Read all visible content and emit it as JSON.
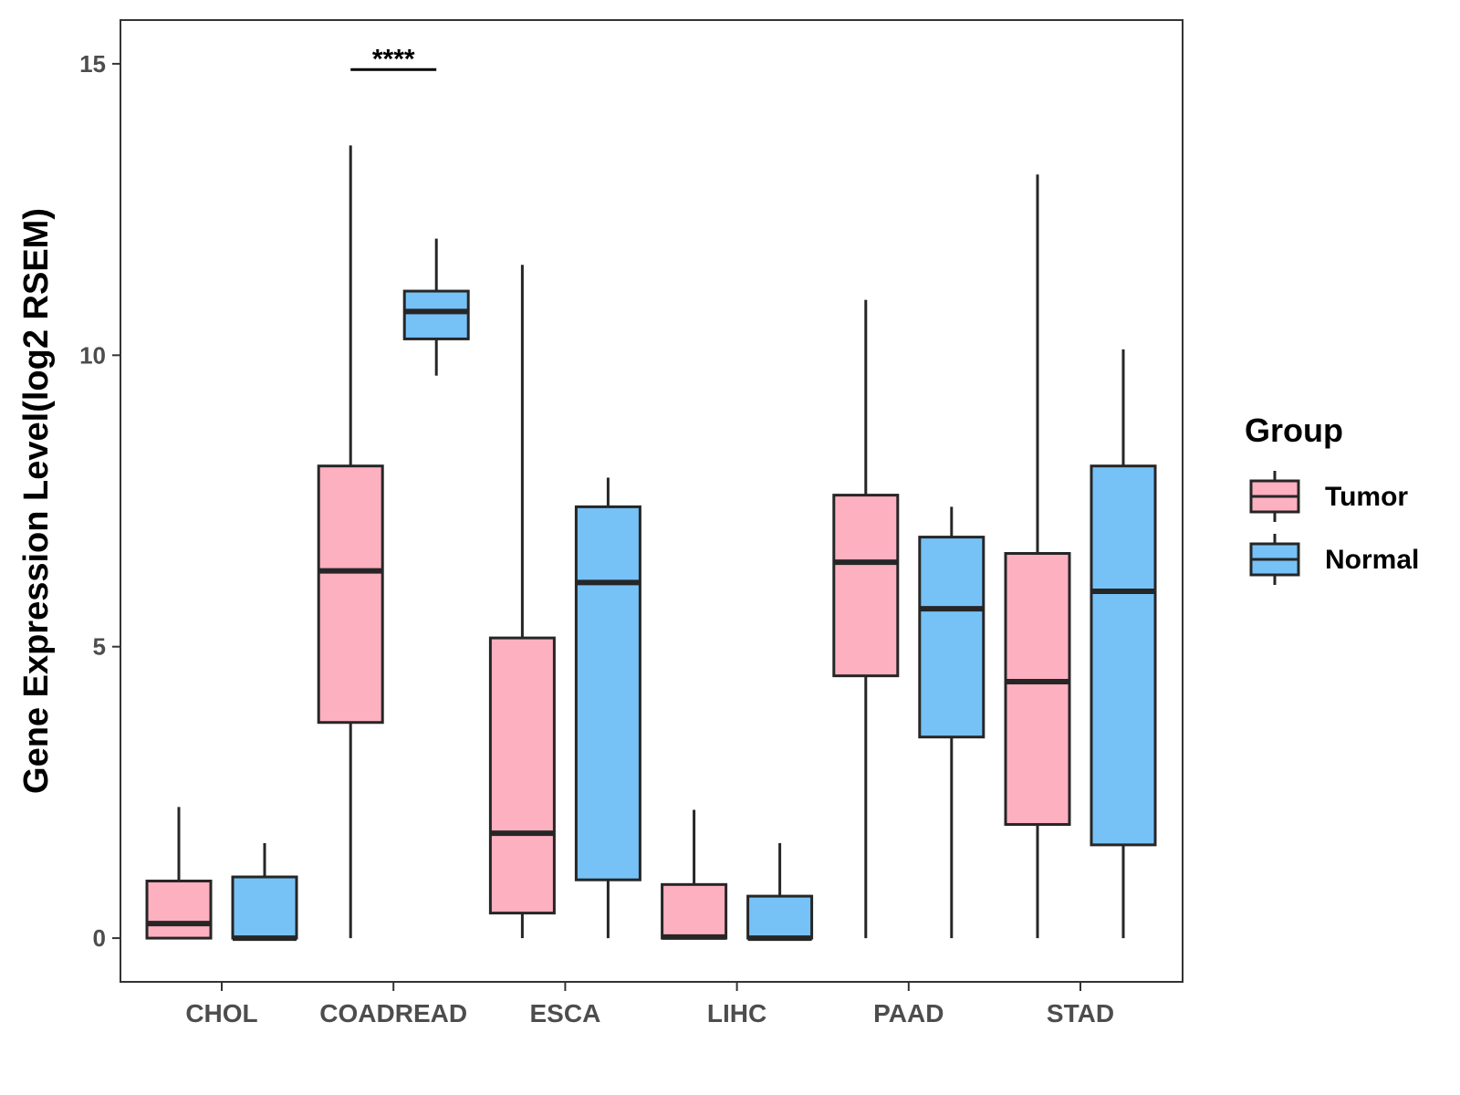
{
  "chart_data": {
    "type": "boxplot",
    "title": "",
    "xlabel": "",
    "ylabel": "Gene Expression Level(log2 RSEM)",
    "ylim": [
      -0.75,
      15.75
    ],
    "yticks": [
      0,
      5,
      10,
      15
    ],
    "grid": false,
    "legend": {
      "title": "Group",
      "position": "right",
      "entries": [
        {
          "name": "Tumor",
          "color": "#fcb0c0"
        },
        {
          "name": "Normal",
          "color": "#76c2f7"
        }
      ]
    },
    "categories": [
      "CHOL",
      "COADREAD",
      "ESCA",
      "LIHC",
      "PAAD",
      "STAD"
    ],
    "series": [
      {
        "name": "Tumor",
        "color": "#fcb0c0",
        "boxes": [
          {
            "min": 0.0,
            "q1": 0.0,
            "median": 0.25,
            "q3": 0.98,
            "max": 2.25
          },
          {
            "min": 0.0,
            "q1": 3.7,
            "median": 6.3,
            "q3": 8.1,
            "max": 13.6
          },
          {
            "min": 0.0,
            "q1": 0.43,
            "median": 1.8,
            "q3": 5.15,
            "max": 11.55
          },
          {
            "min": 0.0,
            "q1": 0.0,
            "median": 0.02,
            "q3": 0.92,
            "max": 2.2
          },
          {
            "min": 0.0,
            "q1": 4.5,
            "median": 6.45,
            "q3": 7.6,
            "max": 10.95
          },
          {
            "min": 0.0,
            "q1": 1.95,
            "median": 4.4,
            "q3": 6.6,
            "max": 13.1
          }
        ]
      },
      {
        "name": "Normal",
        "color": "#76c2f7",
        "boxes": [
          {
            "min": 0.0,
            "q1": 0.0,
            "median": 0.0,
            "q3": 1.05,
            "max": 1.63
          },
          {
            "min": 9.65,
            "q1": 10.28,
            "median": 10.75,
            "q3": 11.1,
            "max": 12.0
          },
          {
            "min": 0.0,
            "q1": 1.0,
            "median": 6.1,
            "q3": 7.4,
            "max": 7.9
          },
          {
            "min": 0.0,
            "q1": 0.0,
            "median": 0.0,
            "q3": 0.72,
            "max": 1.63
          },
          {
            "min": 0.0,
            "q1": 3.45,
            "median": 5.65,
            "q3": 6.88,
            "max": 7.4
          },
          {
            "min": 0.0,
            "q1": 1.6,
            "median": 5.95,
            "q3": 8.1,
            "max": 10.1
          }
        ]
      }
    ],
    "annotations": [
      {
        "category": "COADREAD",
        "text": "****",
        "y": 14.9
      }
    ]
  }
}
